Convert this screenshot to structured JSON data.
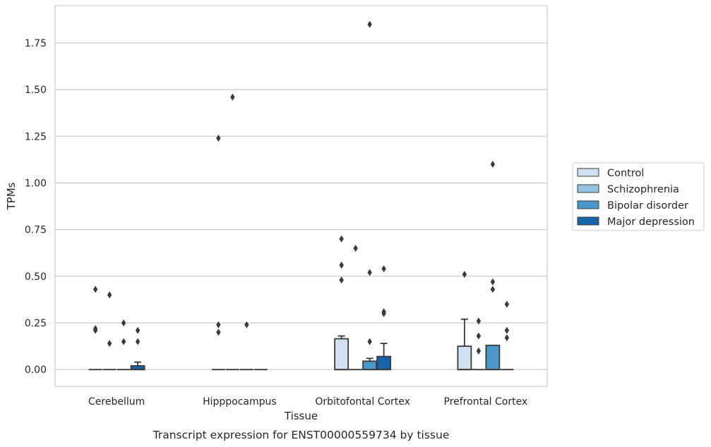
{
  "chart_data": {
    "type": "box",
    "xlabel": "Tissue",
    "ylabel": "TPMs",
    "caption": "Transcript expression for ENST00000559734 by tissue",
    "categories": [
      "Cerebellum",
      "Hipppocampus",
      "Orbitofontal Cortex",
      "Prefrontal Cortex"
    ],
    "ylim": [
      -0.09,
      1.95
    ],
    "yticks": [
      0.0,
      0.25,
      0.5,
      0.75,
      1.0,
      1.25,
      1.5,
      1.75
    ],
    "ytick_labels": [
      "0.00",
      "0.25",
      "0.50",
      "0.75",
      "1.00",
      "1.25",
      "1.50",
      "1.75"
    ],
    "grid": true,
    "legend_position": "right",
    "series": [
      {
        "name": "Control",
        "color": "#d0e1f2",
        "boxes": [
          {
            "q1": 0,
            "median": 0,
            "q3": 0,
            "whisker_low": 0,
            "whisker_high": 0,
            "outliers": [
              0.43,
              0.22,
              0.21
            ]
          },
          {
            "q1": 0,
            "median": 0,
            "q3": 0,
            "whisker_low": 0,
            "whisker_high": 0,
            "outliers": [
              1.24,
              0.24,
              0.2
            ]
          },
          {
            "q1": 0,
            "median": 0,
            "q3": 0.165,
            "whisker_low": 0,
            "whisker_high": 0.18,
            "outliers": [
              0.7,
              0.56,
              0.48
            ]
          },
          {
            "q1": 0,
            "median": 0,
            "q3": 0.125,
            "whisker_low": 0,
            "whisker_high": 0.27,
            "outliers": [
              0.51
            ]
          }
        ]
      },
      {
        "name": "Schizophrenia",
        "color": "#94c4df",
        "boxes": [
          {
            "q1": 0,
            "median": 0,
            "q3": 0,
            "whisker_low": 0,
            "whisker_high": 0,
            "outliers": [
              0.4,
              0.14
            ]
          },
          {
            "q1": 0,
            "median": 0,
            "q3": 0,
            "whisker_low": 0,
            "whisker_high": 0,
            "outliers": [
              1.46
            ]
          },
          {
            "q1": 0,
            "median": 0,
            "q3": 0,
            "whisker_low": 0,
            "whisker_high": 0,
            "outliers": [
              0.65
            ]
          },
          {
            "q1": 0,
            "median": 0,
            "q3": 0,
            "whisker_low": 0,
            "whisker_high": 0,
            "outliers": [
              0.26,
              0.18,
              0.1
            ]
          }
        ]
      },
      {
        "name": "Bipolar disorder",
        "color": "#4a98c9",
        "boxes": [
          {
            "q1": 0,
            "median": 0,
            "q3": 0,
            "whisker_low": 0,
            "whisker_high": 0,
            "outliers": [
              0.25,
              0.15
            ]
          },
          {
            "q1": 0,
            "median": 0,
            "q3": 0,
            "whisker_low": 0,
            "whisker_high": 0,
            "outliers": [
              0.24
            ]
          },
          {
            "q1": 0,
            "median": 0,
            "q3": 0.045,
            "whisker_low": 0,
            "whisker_high": 0.06,
            "outliers": [
              1.85,
              0.52,
              0.15
            ]
          },
          {
            "q1": 0,
            "median": 0,
            "q3": 0.13,
            "whisker_low": 0,
            "whisker_high": 0.13,
            "outliers": [
              1.1,
              0.47,
              0.43
            ]
          }
        ]
      },
      {
        "name": "Major depression",
        "color": "#1764ab",
        "boxes": [
          {
            "q1": 0,
            "median": 0,
            "q3": 0.02,
            "whisker_low": 0,
            "whisker_high": 0.04,
            "outliers": [
              0.21,
              0.15
            ]
          },
          {
            "q1": 0,
            "median": 0,
            "q3": 0,
            "whisker_low": 0,
            "whisker_high": 0,
            "outliers": []
          },
          {
            "q1": 0,
            "median": 0,
            "q3": 0.07,
            "whisker_low": 0,
            "whisker_high": 0.14,
            "outliers": [
              0.54,
              0.31,
              0.3
            ]
          },
          {
            "q1": 0,
            "median": 0,
            "q3": 0,
            "whisker_low": 0,
            "whisker_high": 0,
            "outliers": [
              0.35,
              0.21,
              0.17
            ]
          }
        ]
      }
    ]
  }
}
